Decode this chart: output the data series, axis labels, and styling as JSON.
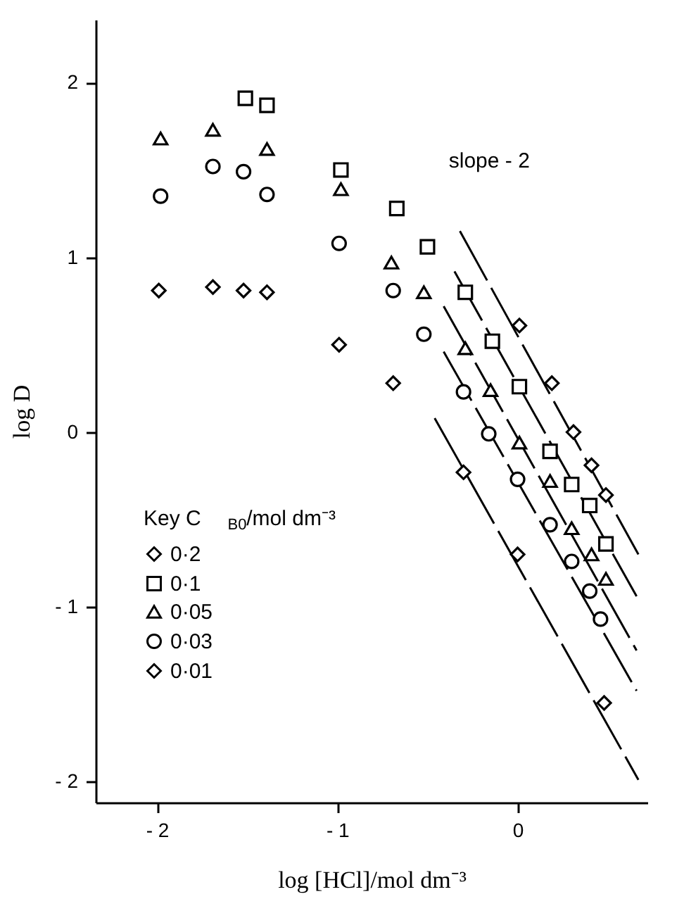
{
  "chart_data": {
    "type": "scatter",
    "xlabel": "log [HCl]/mol dm⁻³",
    "ylabel": "log D",
    "legend_title": "Key   C$_{B0}$/mol dm⁻³",
    "legend": "bottom left",
    "grid": false,
    "xlim": [
      -2.34,
      0.72
    ],
    "ylim": [
      -2.12,
      2.36
    ],
    "xticks": [
      {
        "value": -2,
        "label": "- 2"
      },
      {
        "value": -1,
        "label": "- 1"
      },
      0
    ],
    "yticks": [
      {
        "value": -2,
        "label": "- 2"
      },
      {
        "value": -1,
        "label": "- 1"
      },
      0,
      1,
      2
    ],
    "annotations": [
      "slope - 2"
    ],
    "series": [
      {
        "name": "0·2",
        "color": "#000000",
        "marker": "diamond",
        "x": [
          0.01,
          0.19,
          0.31,
          0.41,
          0.49
        ],
        "values": [
          0.61,
          0.28,
          0.0,
          -0.19,
          -0.36
        ]
      },
      {
        "name": "0·1",
        "color": "#000000",
        "marker": "square",
        "x": [
          -1.51,
          -1.39,
          -0.98,
          -0.67,
          -0.5,
          -0.29,
          -0.14,
          0.01,
          0.18,
          0.3,
          0.4,
          0.49
        ],
        "values": [
          1.91,
          1.87,
          1.5,
          1.28,
          1.06,
          0.8,
          0.52,
          0.26,
          -0.11,
          -0.3,
          -0.42,
          -0.64
        ]
      },
      {
        "name": "0·05",
        "color": "#000000",
        "marker": "triangle",
        "x": [
          -1.98,
          -1.69,
          -1.39,
          -0.98,
          -0.7,
          -0.52,
          -0.29,
          -0.15,
          0.01,
          0.18,
          0.3,
          0.41,
          0.49
        ],
        "values": [
          1.68,
          1.73,
          1.62,
          1.39,
          0.97,
          0.8,
          0.48,
          0.24,
          -0.06,
          -0.28,
          -0.55,
          -0.7,
          -0.84
        ]
      },
      {
        "name": "0·03",
        "color": "#000000",
        "marker": "circle",
        "x": [
          -1.98,
          -1.69,
          -1.52,
          -1.39,
          -0.99,
          -0.69,
          -0.52,
          -0.3,
          -0.16,
          0.0,
          0.18,
          0.3,
          0.4,
          0.46
        ],
        "values": [
          1.35,
          1.52,
          1.49,
          1.36,
          1.08,
          0.81,
          0.56,
          0.23,
          -0.01,
          -0.27,
          -0.53,
          -0.74,
          -0.91,
          -1.07
        ]
      },
      {
        "name": "0·01",
        "color": "#000000",
        "marker": "diamond",
        "x": [
          -1.99,
          -1.69,
          -1.52,
          -1.39,
          -0.99,
          -0.69,
          -0.3,
          0.0,
          0.48
        ],
        "values": [
          0.81,
          0.83,
          0.81,
          0.8,
          0.5,
          0.28,
          -0.23,
          -0.7,
          -1.55
        ]
      },
      {
        "type": "line",
        "color": "#000000",
        "line_style": "dashed",
        "x": [
          -0.32,
          0.67
        ],
        "values": [
          1.15,
          -0.7
        ]
      },
      {
        "type": "line",
        "color": "#000000",
        "line_style": "dashed",
        "x": [
          -0.35,
          0.66
        ],
        "values": [
          0.92,
          -0.94
        ]
      },
      {
        "type": "line",
        "color": "#000000",
        "line_style": "dashed",
        "x": [
          -0.41,
          0.66
        ],
        "values": [
          0.72,
          -1.25
        ]
      },
      {
        "type": "line",
        "color": "#000000",
        "line_style": "dashed",
        "x": [
          -0.41,
          0.66
        ],
        "values": [
          0.46,
          -1.48
        ]
      },
      {
        "type": "line",
        "color": "#000000",
        "line_style": "dashed",
        "x": [
          -0.46,
          0.67
        ],
        "values": [
          0.08,
          -1.99
        ]
      }
    ]
  }
}
